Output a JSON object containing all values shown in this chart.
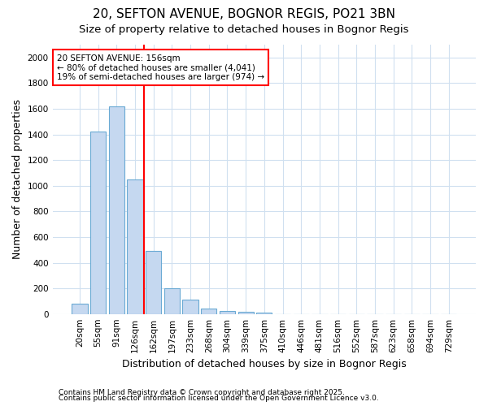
{
  "title1": "20, SEFTON AVENUE, BOGNOR REGIS, PO21 3BN",
  "title2": "Size of property relative to detached houses in Bognor Regis",
  "xlabel": "Distribution of detached houses by size in Bognor Regis",
  "ylabel": "Number of detached properties",
  "categories": [
    "20sqm",
    "55sqm",
    "91sqm",
    "126sqm",
    "162sqm",
    "197sqm",
    "233sqm",
    "268sqm",
    "304sqm",
    "339sqm",
    "375sqm",
    "410sqm",
    "446sqm",
    "481sqm",
    "516sqm",
    "552sqm",
    "587sqm",
    "623sqm",
    "658sqm",
    "694sqm",
    "729sqm"
  ],
  "values": [
    80,
    1420,
    1620,
    1050,
    490,
    200,
    110,
    40,
    25,
    15,
    10,
    0,
    0,
    0,
    0,
    0,
    0,
    0,
    0,
    0,
    0
  ],
  "bar_color": "#c5d8f0",
  "bar_edge_color": "#6aaad4",
  "red_line_index": 3.5,
  "annotation_line1": "20 SEFTON AVENUE: 156sqm",
  "annotation_line2": "← 80% of detached houses are smaller (4,041)",
  "annotation_line3": "19% of semi-detached houses are larger (974) →",
  "ylim": [
    0,
    2100
  ],
  "yticks": [
    0,
    200,
    400,
    600,
    800,
    1000,
    1200,
    1400,
    1600,
    1800,
    2000
  ],
  "background_color": "#ffffff",
  "grid_color": "#d0e0f0",
  "footer1": "Contains HM Land Registry data © Crown copyright and database right 2025.",
  "footer2": "Contains public sector information licensed under the Open Government Licence v3.0.",
  "title_fontsize": 11,
  "subtitle_fontsize": 9.5,
  "axis_label_fontsize": 9,
  "tick_fontsize": 7.5,
  "bar_width": 0.85
}
